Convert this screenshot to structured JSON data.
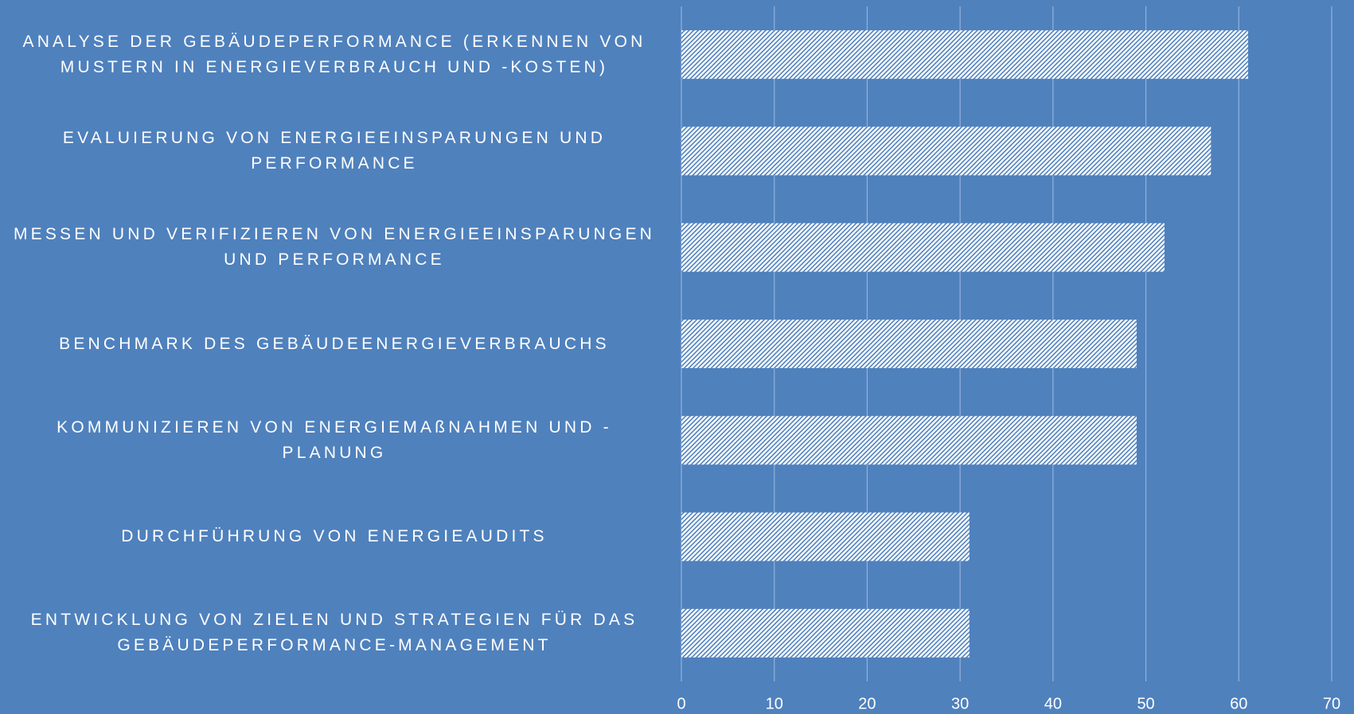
{
  "chart_data": {
    "type": "barh",
    "categories": [
      "ANALYSE DER GEBÄUDEPERFORMANCE (ERKENNEN VON MUSTERN IN ENERGIEVERBRAUCH UND -KOSTEN)",
      "EVALUIERUNG VON ENERGIEEINSPARUNGEN UND PERFORMANCE",
      "MESSEN UND VERIFIZIEREN VON ENERGIEEINSPARUNGEN UND PERFORMANCE",
      "BENCHMARK DES GEBÄUDEENERGIEVERBRAUCHS",
      "KOMMUNIZIEREN VON ENERGIEMAßNAHMEN UND -PLANUNG",
      "DURCHFÜHRUNG VON ENERGIEAUDITS",
      "ENTWICKLUNG VON ZIELEN UND STRATEGIEN FÜR DAS GEBÄUDEPERFORMANCE-MANAGEMENT"
    ],
    "values": [
      61,
      57,
      52,
      49,
      49,
      31,
      31
    ],
    "color": "#ffffff",
    "xlim": [
      0,
      70
    ],
    "xticks": [
      0,
      10,
      20,
      30,
      40,
      50,
      60,
      70
    ],
    "grid": true
  }
}
